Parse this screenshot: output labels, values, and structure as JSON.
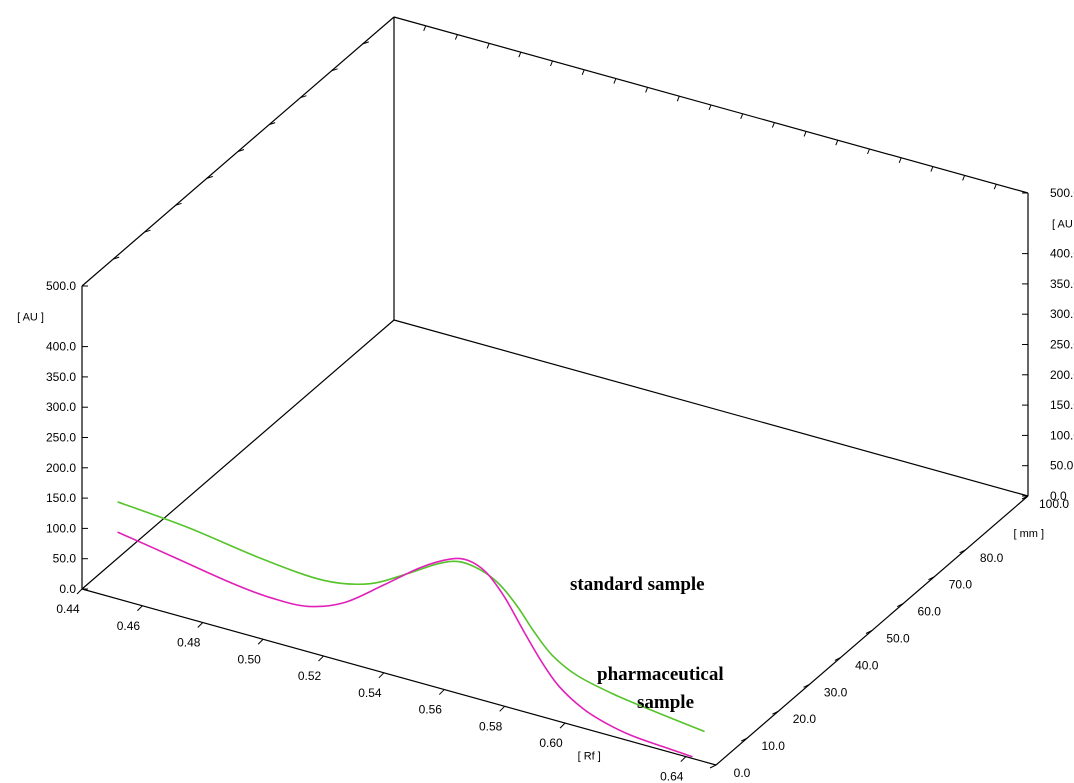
{
  "chart_data": {
    "type": "line",
    "view": "3d",
    "title": "",
    "x_axis": {
      "label": "[ Rf ]",
      "range": [
        0.44,
        0.65
      ],
      "ticks": [
        0.44,
        0.46,
        0.48,
        0.5,
        0.52,
        0.54,
        0.56,
        0.58,
        0.6,
        0.64
      ],
      "tick_labels": [
        "0.44",
        "0.46",
        "0.48",
        "0.50",
        "0.52",
        "0.54",
        "0.56",
        "0.58",
        "0.60",
        "0.64"
      ]
    },
    "y_axis": {
      "label": "[ AU ]",
      "range": [
        0,
        500
      ],
      "ticks": [
        0,
        50,
        100,
        150,
        200,
        250,
        300,
        350,
        400,
        500
      ],
      "tick_labels": [
        "0.0",
        "50.0",
        "100.0",
        "150.0",
        "200.0",
        "250.0",
        "300.0",
        "350.0",
        "400.0",
        "500.0"
      ]
    },
    "z_axis": {
      "label": "[ mm ]",
      "range": [
        0,
        100
      ],
      "ticks": [
        0,
        10,
        20,
        30,
        40,
        50,
        60,
        70,
        80,
        100
      ],
      "tick_labels": [
        "0.0",
        "10.0",
        "20.0",
        "30.0",
        "40.0",
        "50.0",
        "60.0",
        "70.0",
        "80.0",
        "100.0"
      ]
    },
    "series": [
      {
        "annotation": "standard sample",
        "color": "#55c32a",
        "points": [
          [
            0.452,
            160
          ],
          [
            0.475,
            150
          ],
          [
            0.5,
            132
          ],
          [
            0.52,
            125
          ],
          [
            0.535,
            140
          ],
          [
            0.548,
            175
          ],
          [
            0.558,
            205
          ],
          [
            0.565,
            218
          ],
          [
            0.572,
            214
          ],
          [
            0.578,
            200
          ],
          [
            0.584,
            172
          ],
          [
            0.59,
            135
          ],
          [
            0.596,
            105
          ],
          [
            0.604,
            84
          ],
          [
            0.616,
            70
          ],
          [
            0.63,
            60
          ],
          [
            0.646,
            50
          ]
        ]
      },
      {
        "annotation_lines": [
          "pharmaceutical",
          "sample"
        ],
        "color": "#e020b8",
        "points": [
          [
            0.452,
            110
          ],
          [
            0.47,
            95
          ],
          [
            0.49,
            78
          ],
          [
            0.503,
            72
          ],
          [
            0.515,
            75
          ],
          [
            0.527,
            98
          ],
          [
            0.54,
            145
          ],
          [
            0.552,
            190
          ],
          [
            0.562,
            218
          ],
          [
            0.568,
            224
          ],
          [
            0.574,
            212
          ],
          [
            0.58,
            180
          ],
          [
            0.586,
            135
          ],
          [
            0.592,
            92
          ],
          [
            0.598,
            58
          ],
          [
            0.606,
            32
          ],
          [
            0.614,
            18
          ],
          [
            0.622,
            10
          ],
          [
            0.632,
            6
          ],
          [
            0.642,
            3
          ]
        ]
      }
    ],
    "grid": false,
    "legend": "none"
  }
}
